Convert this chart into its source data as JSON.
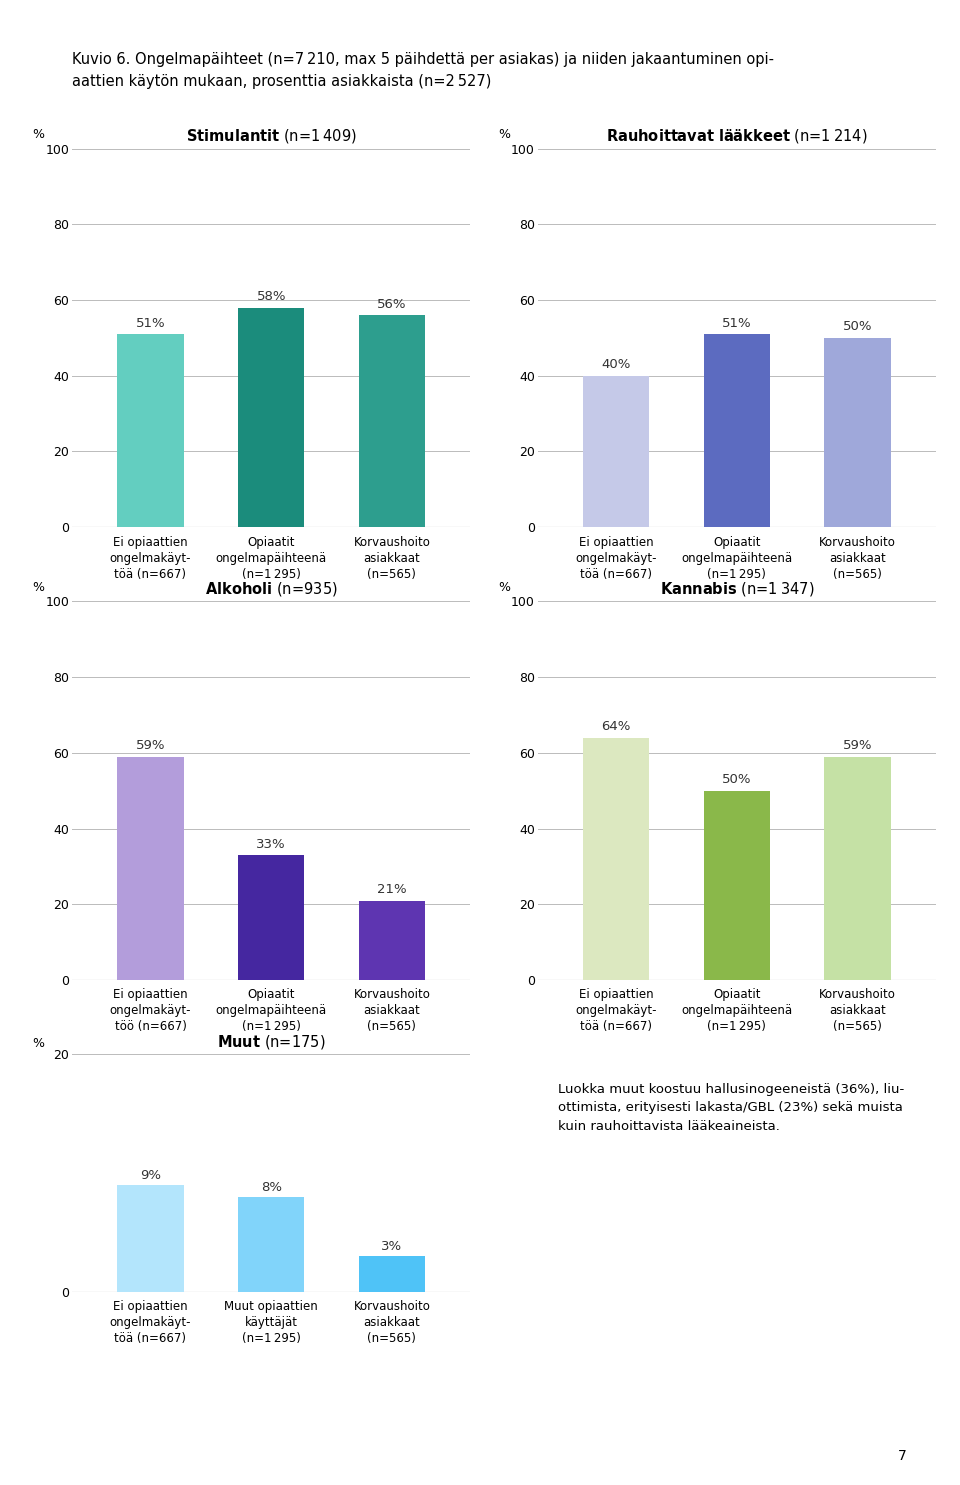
{
  "title": "Kuvio 6. Ongelmapäihteet (n=7 210, max 5 päihdettä per asiakas) ja niiden jakaantuminen opi-\naattien käytön mukaan, prosenttia asiakkaista (n=2 527)",
  "charts": [
    {
      "title_bold": "Stimulantit",
      "title_normal": "(n=1 409)",
      "values": [
        51,
        58,
        56
      ],
      "colors": [
        "#63cec0",
        "#1b8c7c",
        "#2d9e8e"
      ],
      "labels": [
        "51%",
        "58%",
        "56%"
      ],
      "xticklabels": [
        "Ei opiaattien\nongelmakäyt-\ntöä (n=667)",
        "Opiaatit\nongelmapäihteenä\n(n=1 295)",
        "Korvaushoito\nasiakkaat\n(n=565)"
      ],
      "ylim": [
        0,
        100
      ],
      "yticks": [
        0,
        20,
        40,
        60,
        80,
        100
      ]
    },
    {
      "title_bold": "Rauhoittavat lääkkeet",
      "title_normal": "(n=1 214)",
      "values": [
        40,
        51,
        50
      ],
      "colors": [
        "#c5c9e8",
        "#5c6bc0",
        "#9fa8da"
      ],
      "labels": [
        "40%",
        "51%",
        "50%"
      ],
      "xticklabels": [
        "Ei opiaattien\nongelmakäyt-\ntöä (n=667)",
        "Opiaatit\nongelmapäihteenä\n(n=1 295)",
        "Korvaushoito\nasiakkaat\n(n=565)"
      ],
      "ylim": [
        0,
        100
      ],
      "yticks": [
        0,
        20,
        40,
        60,
        80,
        100
      ]
    },
    {
      "title_bold": "Alkoholi",
      "title_normal": "(n=935)",
      "values": [
        59,
        33,
        21
      ],
      "colors": [
        "#b39ddb",
        "#4527a0",
        "#5e35b1"
      ],
      "labels": [
        "59%",
        "33%",
        "21%"
      ],
      "xticklabels": [
        "Ei opiaattien\nongelmakäyt-\ntöö (n=667)",
        "Opiaatit\nongelmapäihteenä\n(n=1 295)",
        "Korvaushoito\nasiakkaat\n(n=565)"
      ],
      "ylim": [
        0,
        100
      ],
      "yticks": [
        0,
        20,
        40,
        60,
        80,
        100
      ]
    },
    {
      "title_bold": "Kannabis",
      "title_normal": "(n=1 347)",
      "values": [
        64,
        50,
        59
      ],
      "colors": [
        "#dce8c0",
        "#8ab84a",
        "#c5e1a5"
      ],
      "labels": [
        "64%",
        "50%",
        "59%"
      ],
      "xticklabels": [
        "Ei opiaattien\nongelmakäyt-\ntöä (n=667)",
        "Opiaatit\nongelmapäihteenä\n(n=1 295)",
        "Korvaushoito\nasiakkaat\n(n=565)"
      ],
      "ylim": [
        0,
        100
      ],
      "yticks": [
        0,
        20,
        40,
        60,
        80,
        100
      ]
    },
    {
      "title_bold": "Muut",
      "title_normal": "(n=175)",
      "values": [
        9,
        8,
        3
      ],
      "colors": [
        "#b3e5fc",
        "#81d4fa",
        "#4fc3f7"
      ],
      "labels": [
        "9%",
        "8%",
        "3%"
      ],
      "xticklabels": [
        "Ei opiaattien\nongelmakäyt-\ntöä (n=667)",
        "Muut opiaattien\nkäyttäjät\n(n=1 295)",
        "Korvaushoito\nasiakkaat\n(n=565)"
      ],
      "ylim": [
        0,
        20
      ],
      "yticks": [
        0,
        20
      ]
    }
  ],
  "footnote": "Luokka muut koostuu hallusinogeeneistä (36%), liu-\nottimista, erityisesti lakasta/GBL (23%) sekä muista\nkuin rauhoittavista lääkeaineista.",
  "page_number": "7",
  "background_color": "#ffffff",
  "bar_width": 0.55,
  "gridline_color": "#bbbbbb",
  "label_fontsize": 9.5,
  "tick_fontsize": 9,
  "xtick_fontsize": 8.5,
  "chart_title_fontsize": 10.5
}
